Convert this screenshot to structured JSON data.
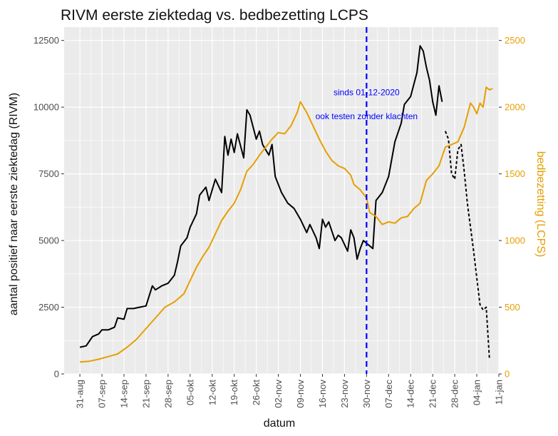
{
  "chart_data": {
    "type": "line",
    "title": "RIVM eerste ziektedag vs. bedbezetting LCPS",
    "xlabel": "datum",
    "ylabel": "aantal positief naar eerste ziektedag (RIVM)",
    "y2label": "bedbezetting (LCPS)",
    "x_ticks": [
      "31-aug",
      "07-sep",
      "14-sep",
      "21-sep",
      "28-sep",
      "05-okt",
      "12-okt",
      "19-okt",
      "26-okt",
      "02-nov",
      "09-nov",
      "16-nov",
      "23-nov",
      "30-nov",
      "07-dec",
      "14-dec",
      "21-dec",
      "28-dec",
      "04-jan",
      "11-jan"
    ],
    "x_start": "2020-08-28",
    "xlim_days": [
      -2,
      136
    ],
    "ylim": [
      0,
      13000
    ],
    "y_ticks": [
      0,
      2500,
      5000,
      7500,
      10000,
      12500
    ],
    "y2lim": [
      0,
      2600
    ],
    "y2_ticks": [
      0,
      500,
      1000,
      1500,
      2000,
      2500
    ],
    "grid": true,
    "colors": {
      "rivm": "#000000",
      "lcps": "#e69f00",
      "vline": "#0000ff",
      "panel": "#ebebeb",
      "grid": "#ffffff"
    },
    "annotation": {
      "line1": "sinds 01-12-2020",
      "line2": "ook testen zonder klachten",
      "x_day": 94
    },
    "series": [
      {
        "key": "rivm",
        "axis": "left",
        "style": "solid",
        "points": [
          [
            3,
            1000
          ],
          [
            5,
            1050
          ],
          [
            7,
            1400
          ],
          [
            9,
            1500
          ],
          [
            10,
            1650
          ],
          [
            12,
            1650
          ],
          [
            14,
            1750
          ],
          [
            15,
            2100
          ],
          [
            17,
            2050
          ],
          [
            18,
            2450
          ],
          [
            20,
            2450
          ],
          [
            22,
            2500
          ],
          [
            24,
            2550
          ],
          [
            26,
            3300
          ],
          [
            27,
            3150
          ],
          [
            29,
            3300
          ],
          [
            31,
            3400
          ],
          [
            33,
            3700
          ],
          [
            34,
            4200
          ],
          [
            35,
            4800
          ],
          [
            37,
            5100
          ],
          [
            38,
            5500
          ],
          [
            40,
            6000
          ],
          [
            41,
            6700
          ],
          [
            43,
            7000
          ],
          [
            44,
            6500
          ],
          [
            46,
            7300
          ],
          [
            48,
            6800
          ],
          [
            49,
            8900
          ],
          [
            50,
            8200
          ],
          [
            51,
            8800
          ],
          [
            52,
            8300
          ],
          [
            53,
            9000
          ],
          [
            55,
            8100
          ],
          [
            56,
            9900
          ],
          [
            57,
            9700
          ],
          [
            59,
            8800
          ],
          [
            60,
            9100
          ],
          [
            61,
            8600
          ],
          [
            63,
            8200
          ],
          [
            64,
            8600
          ],
          [
            65,
            7400
          ],
          [
            67,
            6800
          ],
          [
            69,
            6400
          ],
          [
            71,
            6200
          ],
          [
            73,
            5800
          ],
          [
            75,
            5300
          ],
          [
            76,
            5600
          ],
          [
            78,
            5100
          ],
          [
            79,
            4700
          ],
          [
            80,
            5800
          ],
          [
            81,
            5500
          ],
          [
            82,
            5700
          ],
          [
            84,
            5000
          ],
          [
            85,
            5200
          ],
          [
            86,
            5100
          ],
          [
            88,
            4600
          ],
          [
            89,
            5400
          ],
          [
            90,
            5100
          ],
          [
            91,
            4300
          ],
          [
            92,
            4700
          ],
          [
            93,
            5000
          ],
          [
            95,
            4800
          ],
          [
            96,
            4700
          ],
          [
            97,
            6500
          ],
          [
            99,
            6800
          ],
          [
            101,
            7400
          ],
          [
            103,
            8700
          ],
          [
            105,
            9400
          ],
          [
            106,
            10100
          ],
          [
            108,
            10400
          ],
          [
            110,
            11300
          ],
          [
            111,
            12300
          ],
          [
            112,
            12100
          ],
          [
            113,
            11500
          ],
          [
            114,
            11000
          ],
          [
            115,
            10200
          ],
          [
            116,
            9700
          ],
          [
            117,
            10800
          ],
          [
            118,
            10200
          ]
        ]
      },
      {
        "key": "rivm_incomplete",
        "axis": "left",
        "style": "dashed",
        "points": [
          [
            119,
            9100
          ],
          [
            120,
            8800
          ],
          [
            121,
            7500
          ],
          [
            122,
            7300
          ],
          [
            123,
            8400
          ],
          [
            124,
            8600
          ],
          [
            125,
            7600
          ],
          [
            126,
            6400
          ],
          [
            128,
            4600
          ],
          [
            130,
            2600
          ],
          [
            131,
            2400
          ],
          [
            132,
            2500
          ],
          [
            133,
            600
          ]
        ]
      },
      {
        "key": "lcps",
        "axis": "right",
        "style": "solid",
        "points": [
          [
            3,
            90
          ],
          [
            6,
            95
          ],
          [
            9,
            110
          ],
          [
            12,
            130
          ],
          [
            15,
            150
          ],
          [
            18,
            200
          ],
          [
            21,
            260
          ],
          [
            24,
            340
          ],
          [
            27,
            420
          ],
          [
            30,
            500
          ],
          [
            33,
            540
          ],
          [
            36,
            600
          ],
          [
            38,
            700
          ],
          [
            40,
            800
          ],
          [
            42,
            880
          ],
          [
            44,
            950
          ],
          [
            46,
            1050
          ],
          [
            48,
            1150
          ],
          [
            50,
            1220
          ],
          [
            52,
            1280
          ],
          [
            54,
            1380
          ],
          [
            56,
            1520
          ],
          [
            58,
            1570
          ],
          [
            60,
            1640
          ],
          [
            62,
            1700
          ],
          [
            64,
            1760
          ],
          [
            66,
            1810
          ],
          [
            68,
            1800
          ],
          [
            70,
            1860
          ],
          [
            72,
            1960
          ],
          [
            73,
            2040
          ],
          [
            75,
            1960
          ],
          [
            77,
            1860
          ],
          [
            79,
            1760
          ],
          [
            81,
            1670
          ],
          [
            83,
            1600
          ],
          [
            85,
            1560
          ],
          [
            87,
            1540
          ],
          [
            89,
            1490
          ],
          [
            90,
            1420
          ],
          [
            92,
            1380
          ],
          [
            94,
            1320
          ],
          [
            95,
            1210
          ],
          [
            97,
            1180
          ],
          [
            99,
            1120
          ],
          [
            101,
            1140
          ],
          [
            103,
            1130
          ],
          [
            105,
            1170
          ],
          [
            107,
            1180
          ],
          [
            109,
            1240
          ],
          [
            111,
            1280
          ],
          [
            113,
            1450
          ],
          [
            115,
            1500
          ],
          [
            117,
            1560
          ],
          [
            119,
            1700
          ],
          [
            121,
            1720
          ],
          [
            123,
            1740
          ],
          [
            125,
            1850
          ],
          [
            127,
            2030
          ],
          [
            128,
            2000
          ],
          [
            129,
            1950
          ],
          [
            130,
            2030
          ],
          [
            131,
            2000
          ],
          [
            132,
            2150
          ],
          [
            133,
            2130
          ],
          [
            134,
            2140
          ]
        ]
      }
    ]
  }
}
